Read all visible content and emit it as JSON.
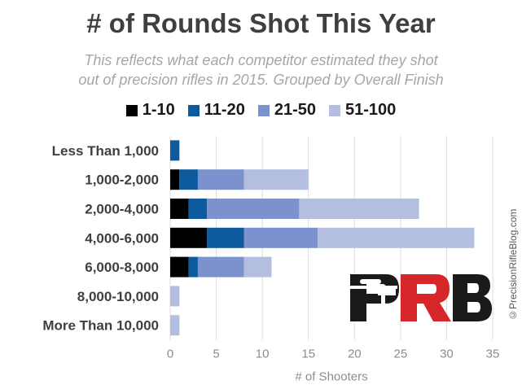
{
  "chart_data": {
    "type": "bar",
    "orientation": "horizontal",
    "stacked": true,
    "title": "# of Rounds Shot This Year",
    "subtitle_lines": [
      "This reflects what each competitor estimated they shot",
      "out of precision rifles in 2015. Grouped by Overall Finish"
    ],
    "categories": [
      "Less Than 1,000",
      "1,000-2,000",
      "2,000-4,000",
      "4,000-6,000",
      "6,000-8,000",
      "8,000-10,000",
      "More Than 10,000"
    ],
    "series": [
      {
        "name": "1-10",
        "color": "#000000",
        "values": [
          0,
          1,
          2,
          4,
          2,
          0,
          0
        ]
      },
      {
        "name": "11-20",
        "color": "#0d5a9e",
        "values": [
          1,
          2,
          2,
          4,
          1,
          0,
          0
        ]
      },
      {
        "name": "21-50",
        "color": "#7b92cf",
        "values": [
          0,
          5,
          10,
          8,
          5,
          0,
          0
        ]
      },
      {
        "name": "51-100",
        "color": "#b4bee0",
        "values": [
          0,
          7,
          13,
          17,
          3,
          1,
          1
        ]
      }
    ],
    "xlim": [
      0,
      35
    ],
    "xticks": [
      "0",
      "5",
      "10",
      "15",
      "20",
      "25",
      "30",
      "35"
    ],
    "xlabel": "# of Shooters",
    "ylabel": "",
    "grid": "vertical",
    "legend": "top"
  },
  "watermark": "©PrecisionRifleBlog.com",
  "logo": {
    "text": "PRB",
    "colors": [
      "#1a1a1a",
      "#d7262a"
    ]
  }
}
